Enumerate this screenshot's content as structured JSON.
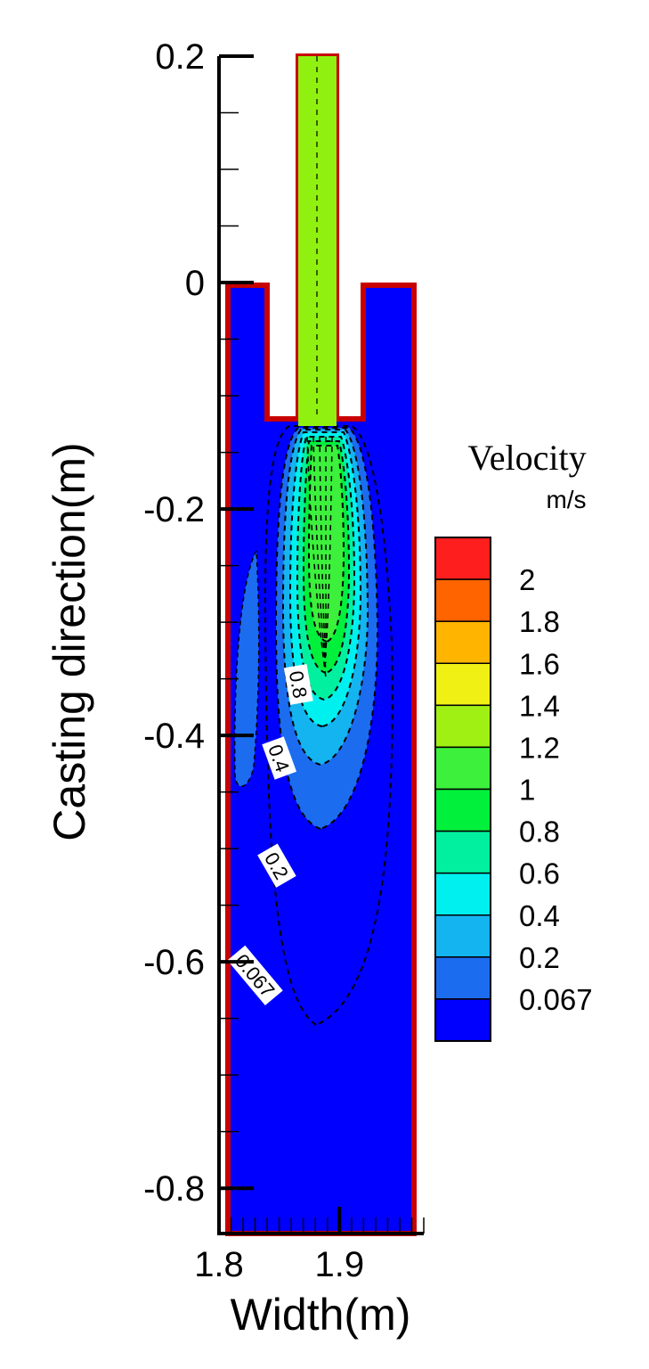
{
  "chart_data": {
    "type": "contour",
    "title": "",
    "xlabel": "Width(m)",
    "ylabel": "Casting direction(m)",
    "xlim": [
      1.8,
      1.97
    ],
    "ylim": [
      -0.84,
      0.2
    ],
    "x_ticks": [
      {
        "value": 1.8,
        "label": "1.8"
      },
      {
        "value": 1.9,
        "label": "1.9"
      }
    ],
    "y_ticks": [
      {
        "value": 0.2,
        "label": "0.2"
      },
      {
        "value": 0,
        "label": "0"
      },
      {
        "value": -0.2,
        "label": "-0.2"
      },
      {
        "value": -0.4,
        "label": "-0.4"
      },
      {
        "value": -0.6,
        "label": "-0.6"
      },
      {
        "value": -0.8,
        "label": "-0.8"
      }
    ],
    "legend": {
      "title": "Velocity",
      "unit": "m/s",
      "levels": [
        {
          "label": "0.067",
          "color": "#0000ff"
        },
        {
          "label": "0.2",
          "color": "#1c6cf0"
        },
        {
          "label": "0.4",
          "color": "#14b4f0"
        },
        {
          "label": "0.6",
          "color": "#00f0f0"
        },
        {
          "label": "0.8",
          "color": "#00f0a0"
        },
        {
          "label": "1",
          "color": "#00f03c"
        },
        {
          "label": "1.2",
          "color": "#3cf03c"
        },
        {
          "label": "1.4",
          "color": "#a0f014"
        },
        {
          "label": "1.6",
          "color": "#f0f014"
        },
        {
          "label": "1.8",
          "color": "#ffb400"
        },
        {
          "label": "2",
          "color": "#ff6400"
        }
      ],
      "top_color": "#ff1e1e"
    },
    "contour_labels": [
      {
        "text": "0.8",
        "x": 1.866,
        "y": -0.355,
        "angle": 80
      },
      {
        "text": "0.4",
        "x": 1.85,
        "y": -0.42,
        "angle": 70
      },
      {
        "text": "0.2",
        "x": 1.848,
        "y": -0.515,
        "angle": 60
      },
      {
        "text": "0.067",
        "x": 1.83,
        "y": -0.612,
        "angle": 50
      }
    ],
    "nozzle_jet_velocity": "1.4",
    "colors": {
      "background_fluid": "#0000ff",
      "wall": "#c80000",
      "nozzle": "#90f010"
    }
  }
}
